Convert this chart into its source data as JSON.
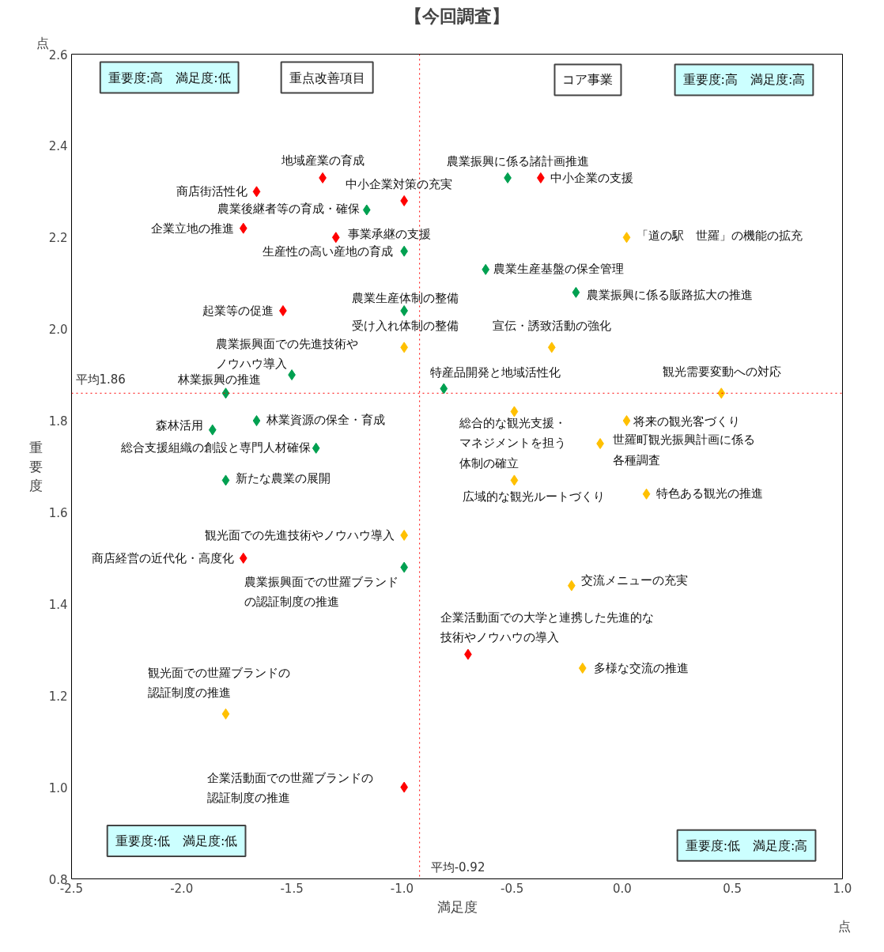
{
  "chart_data": {
    "type": "scatter",
    "title": "【今回調査】",
    "xlabel": "満足度",
    "ylabel": "重要度",
    "xlim": [
      -2.5,
      1.0
    ],
    "ylim": [
      0.8,
      2.6
    ],
    "xticks": [
      {
        "value": -2.5,
        "label": "-2.5"
      },
      {
        "value": -2.0,
        "label": "-2.0"
      },
      {
        "value": -1.5,
        "label": "-1.5"
      },
      {
        "value": -1.0,
        "label": "-1.0"
      },
      {
        "value": -0.5,
        "label": "-0.5"
      },
      {
        "value": 0.0,
        "label": "0.0"
      },
      {
        "value": 0.5,
        "label": "0.5"
      },
      {
        "value": 1.0,
        "label": "1.0"
      }
    ],
    "yticks": [
      0.8,
      {
        "value": 1.0,
        "label": "1.0"
      },
      1.2,
      1.4,
      1.6,
      1.8,
      {
        "value": 2.0,
        "label": "2.0"
      },
      2.2,
      2.4,
      2.6
    ],
    "grid": false,
    "marker": "diamond",
    "series": [
      {
        "color": "#ff0000",
        "x": [
          -1.36,
          -1.66,
          -0.99,
          -0.37,
          -1.72,
          -1.3,
          -1.54,
          -1.72,
          -0.7,
          -0.99
        ],
        "values": [
          2.33,
          2.3,
          2.28,
          2.33,
          2.22,
          2.2,
          2.04,
          1.5,
          1.29,
          1.0
        ]
      },
      {
        "color": "#00a050",
        "x": [
          -0.52,
          -1.16,
          -0.99,
          -0.62,
          -0.21,
          -0.99,
          -1.5,
          -1.8,
          -0.81,
          -1.86,
          -1.66,
          -1.39,
          -1.8,
          -0.99
        ],
        "values": [
          2.33,
          2.26,
          2.17,
          2.13,
          2.08,
          2.04,
          1.9,
          1.86,
          1.87,
          1.78,
          1.8,
          1.74,
          1.67,
          1.48
        ]
      },
      {
        "color": "#ffc000",
        "x": [
          0.02,
          -0.99,
          -0.32,
          0.45,
          -0.49,
          0.02,
          -0.1,
          -0.49,
          0.11,
          -0.99,
          -0.23,
          -0.18,
          -1.8
        ],
        "values": [
          2.2,
          1.96,
          1.96,
          1.86,
          1.82,
          1.8,
          1.75,
          1.67,
          1.64,
          1.55,
          1.44,
          1.26,
          1.16
        ]
      }
    ],
    "ref_lines": [
      {
        "axis": "x",
        "value": -0.92,
        "label": "平均-0.92",
        "color": "#ff0000",
        "line_style": "dotted"
      },
      {
        "axis": "y",
        "value": 1.86,
        "label": "平均1.86",
        "color": "#ff0000",
        "line_style": "dotted"
      }
    ],
    "annotations": [
      "重要度:高　満足度:低",
      "重点改善項目",
      "コア事業",
      "重要度:高　満足度:高",
      "重要度:低　満足度:低",
      "重要度:低　満足度:高",
      "点",
      "点",
      {
        "text": "地域産業の育成",
        "x": -1.36,
        "y": 2.33
      },
      {
        "text": "商店街活性化",
        "x": -1.66,
        "y": 2.3
      },
      {
        "text": "中小企業対策の充実",
        "x": -0.99,
        "y": 2.28
      },
      {
        "text": "中小企業の支援",
        "x": -0.37,
        "y": 2.33
      },
      {
        "text": "企業立地の推進",
        "x": -1.72,
        "y": 2.22
      },
      {
        "text": "事業承継の支援",
        "x": -1.3,
        "y": 2.2
      },
      {
        "text": "起業等の促進",
        "x": -1.54,
        "y": 2.04
      },
      {
        "text": "商店経営の近代化・高度化",
        "x": -1.72,
        "y": 1.5
      },
      {
        "text": "企業活動面での大学と連携した先進的な技術やノウハウの導入",
        "x": -0.7,
        "y": 1.29
      },
      {
        "text": "企業活動面での世羅ブランドの認証制度の推進",
        "x": -0.99,
        "y": 1.0
      },
      {
        "text": "農業振興に係る諸計画推進",
        "x": -0.52,
        "y": 2.33
      },
      {
        "text": "農業後継者等の育成・確保",
        "x": -1.16,
        "y": 2.26
      },
      {
        "text": "生産性の高い産地の育成",
        "x": -0.99,
        "y": 2.17
      },
      {
        "text": "農業生産基盤の保全管理",
        "x": -0.62,
        "y": 2.13
      },
      {
        "text": "農業振興に係る販路拡大の推進",
        "x": -0.21,
        "y": 2.08
      },
      {
        "text": "農業生産体制の整備",
        "x": -0.99,
        "y": 2.04
      },
      {
        "text": "農業振興面での先進技術やノウハウ導入",
        "x": -1.5,
        "y": 1.9
      },
      {
        "text": "林業振興の推進",
        "x": -1.8,
        "y": 1.86
      },
      {
        "text": "特産品開発と地域活性化",
        "x": -0.81,
        "y": 1.87
      },
      {
        "text": "森林活用",
        "x": -1.86,
        "y": 1.78
      },
      {
        "text": "林業資源の保全・育成",
        "x": -1.66,
        "y": 1.8
      },
      {
        "text": "総合支援組織の創設と専門人材確保",
        "x": -1.39,
        "y": 1.74
      },
      {
        "text": "新たな農業の展開",
        "x": -1.8,
        "y": 1.67
      },
      {
        "text": "農業振興面での世羅ブランドの認証制度の推進",
        "x": -0.99,
        "y": 1.48
      },
      {
        "text": "「道の駅　世羅」の機能の拡充",
        "x": 0.02,
        "y": 2.2
      },
      {
        "text": "受け入れ体制の整備",
        "x": -0.99,
        "y": 1.96
      },
      {
        "text": "宣伝・誘致活動の強化",
        "x": -0.32,
        "y": 1.96
      },
      {
        "text": "観光需要変動への対応",
        "x": 0.45,
        "y": 1.86
      },
      {
        "text": "総合的な観光支援・マネジメントを担う体制の確立",
        "x": -0.49,
        "y": 1.82
      },
      {
        "text": "将来の観光客づくり",
        "x": 0.02,
        "y": 1.8
      },
      {
        "text": "世羅町観光振興計画に係る各種調査",
        "x": -0.1,
        "y": 1.75
      },
      {
        "text": "広域的な観光ルートづくり",
        "x": -0.49,
        "y": 1.67
      },
      {
        "text": "特色ある観光の推進",
        "x": 0.11,
        "y": 1.64
      },
      {
        "text": "観光面での先進技術やノウハウ導入",
        "x": -0.99,
        "y": 1.55
      },
      {
        "text": "交流メニューの充実",
        "x": -0.23,
        "y": 1.44
      },
      {
        "text": "多様な交流の推進",
        "x": -0.18,
        "y": 1.26
      },
      {
        "text": "観光面での世羅ブランドの認証制度の推進",
        "x": -1.8,
        "y": 1.16
      }
    ]
  }
}
